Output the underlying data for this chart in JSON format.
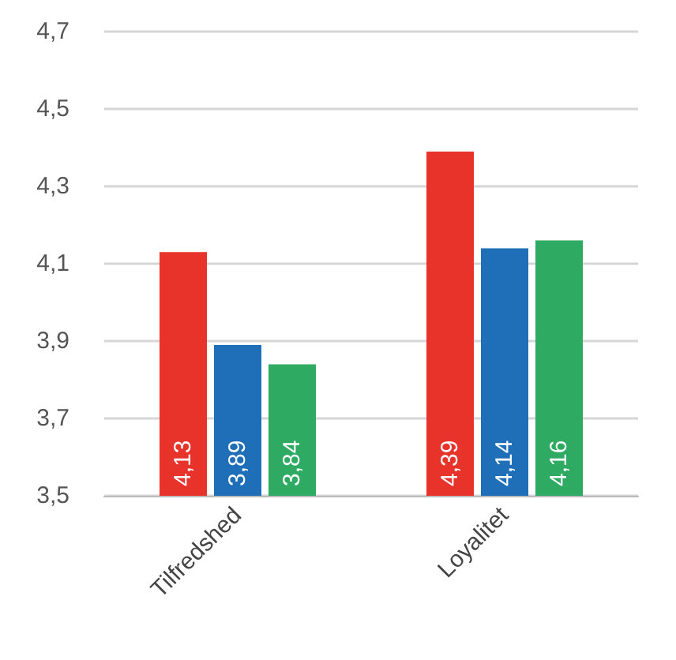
{
  "chart_data": {
    "type": "bar",
    "categories": [
      "Tilfredshed",
      "Loyalitet"
    ],
    "series": [
      {
        "color": "#e8332a",
        "values": [
          4.13,
          4.39
        ],
        "value_labels": [
          "4,13",
          "4,39"
        ]
      },
      {
        "color": "#1f6fb8",
        "values": [
          3.89,
          4.14
        ],
        "value_labels": [
          "3,89",
          "4,14"
        ]
      },
      {
        "color": "#2eaa63",
        "values": [
          3.84,
          4.16
        ],
        "value_labels": [
          "3,84",
          "4,16"
        ]
      }
    ],
    "ylim": [
      3.5,
      4.7
    ],
    "yticks": [
      {
        "value": 3.5,
        "label": "3,5"
      },
      {
        "value": 3.7,
        "label": "3,7"
      },
      {
        "value": 3.9,
        "label": "3,9"
      },
      {
        "value": 4.1,
        "label": "4,1"
      },
      {
        "value": 4.3,
        "label": "4,3"
      },
      {
        "value": 4.5,
        "label": "4,5"
      },
      {
        "value": 4.7,
        "label": "4,7"
      }
    ],
    "grid": "y"
  }
}
